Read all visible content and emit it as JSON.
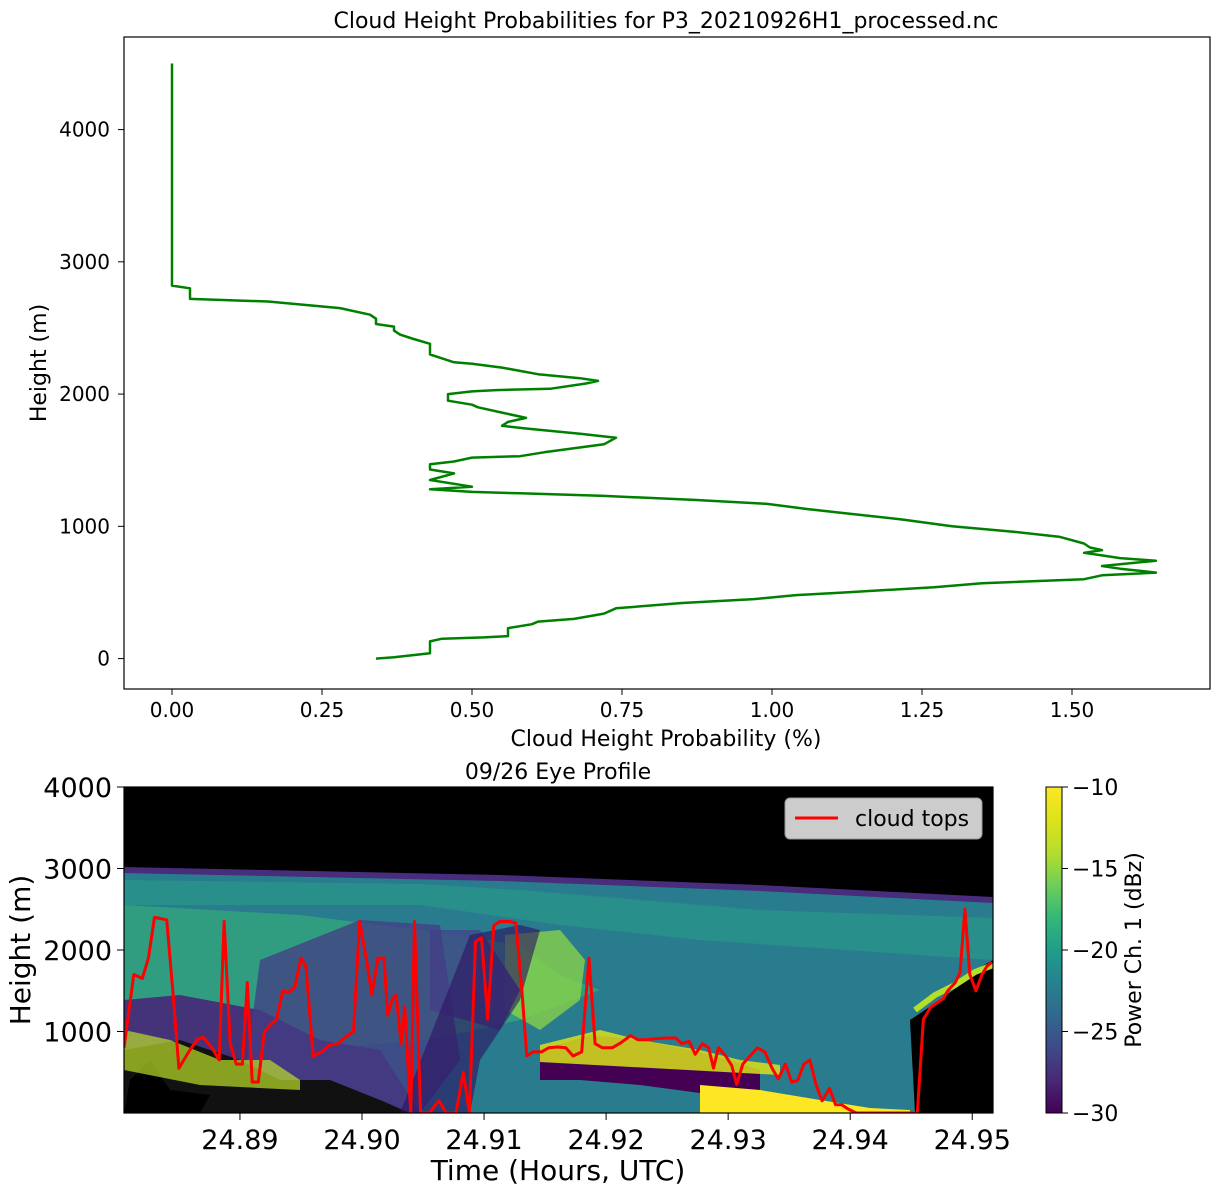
{
  "chart_data": [
    {
      "type": "line",
      "title": "Cloud Height Probabilities for P3_20210926H1_processed.nc",
      "xlabel": "Cloud Height Probability (%)",
      "ylabel": "Height (m)",
      "xlim": [
        -0.08,
        1.73
      ],
      "ylim": [
        -230,
        4700
      ],
      "xticks": [
        0.0,
        0.25,
        0.5,
        0.75,
        1.0,
        1.25,
        1.5
      ],
      "xtick_labels": [
        "0.00",
        "0.25",
        "0.50",
        "0.75",
        "1.00",
        "1.25",
        "1.50"
      ],
      "yticks": [
        0,
        1000,
        2000,
        3000,
        4000
      ],
      "ytick_labels": [
        "0",
        "1000",
        "2000",
        "3000",
        "4000"
      ],
      "grid": false,
      "line_color": "#008000",
      "series": [
        {
          "points": [
            [
              0.34,
              0
            ],
            [
              0.37,
              10
            ],
            [
              0.4,
              25
            ],
            [
              0.43,
              40
            ],
            [
              0.43,
              80
            ],
            [
              0.43,
              130
            ],
            [
              0.45,
              150
            ],
            [
              0.52,
              160
            ],
            [
              0.56,
              170
            ],
            [
              0.56,
              200
            ],
            [
              0.56,
              230
            ],
            [
              0.6,
              260
            ],
            [
              0.61,
              280
            ],
            [
              0.67,
              300
            ],
            [
              0.72,
              340
            ],
            [
              0.74,
              380
            ],
            [
              0.85,
              420
            ],
            [
              0.97,
              450
            ],
            [
              1.04,
              480
            ],
            [
              1.12,
              500
            ],
            [
              1.27,
              540
            ],
            [
              1.35,
              570
            ],
            [
              1.52,
              600
            ],
            [
              1.55,
              630
            ],
            [
              1.64,
              650
            ],
            [
              1.58,
              680
            ],
            [
              1.55,
              700
            ],
            [
              1.64,
              740
            ],
            [
              1.58,
              760
            ],
            [
              1.55,
              780
            ],
            [
              1.52,
              800
            ],
            [
              1.55,
              820
            ],
            [
              1.53,
              840
            ],
            [
              1.52,
              870
            ],
            [
              1.48,
              920
            ],
            [
              1.4,
              960
            ],
            [
              1.3,
              1000
            ],
            [
              1.22,
              1050
            ],
            [
              1.12,
              1100
            ],
            [
              1.06,
              1130
            ],
            [
              0.99,
              1170
            ],
            [
              0.87,
              1200
            ],
            [
              0.72,
              1230
            ],
            [
              0.58,
              1250
            ],
            [
              0.5,
              1260
            ],
            [
              0.43,
              1280
            ],
            [
              0.5,
              1300
            ],
            [
              0.43,
              1350
            ],
            [
              0.47,
              1400
            ],
            [
              0.43,
              1430
            ],
            [
              0.43,
              1470
            ],
            [
              0.47,
              1490
            ],
            [
              0.5,
              1520
            ],
            [
              0.58,
              1530
            ],
            [
              0.62,
              1560
            ],
            [
              0.72,
              1620
            ],
            [
              0.74,
              1670
            ],
            [
              0.68,
              1700
            ],
            [
              0.59,
              1740
            ],
            [
              0.55,
              1760
            ],
            [
              0.56,
              1790
            ],
            [
              0.59,
              1820
            ],
            [
              0.55,
              1860
            ],
            [
              0.51,
              1900
            ],
            [
              0.5,
              1920
            ],
            [
              0.46,
              1950
            ],
            [
              0.46,
              2000
            ],
            [
              0.5,
              2020
            ],
            [
              0.54,
              2030
            ],
            [
              0.63,
              2040
            ],
            [
              0.69,
              2080
            ],
            [
              0.71,
              2100
            ],
            [
              0.68,
              2120
            ],
            [
              0.61,
              2150
            ],
            [
              0.55,
              2200
            ],
            [
              0.5,
              2230
            ],
            [
              0.47,
              2240
            ],
            [
              0.43,
              2300
            ],
            [
              0.43,
              2340
            ],
            [
              0.43,
              2380
            ],
            [
              0.4,
              2420
            ],
            [
              0.38,
              2450
            ],
            [
              0.37,
              2480
            ],
            [
              0.37,
              2510
            ],
            [
              0.34,
              2530
            ],
            [
              0.34,
              2570
            ],
            [
              0.33,
              2600
            ],
            [
              0.28,
              2650
            ],
            [
              0.16,
              2700
            ],
            [
              0.03,
              2720
            ],
            [
              0.03,
              2760
            ],
            [
              0.03,
              2800
            ],
            [
              0.0,
              2820
            ],
            [
              0.0,
              2900
            ],
            [
              0.0,
              3000
            ],
            [
              0.0,
              3500
            ],
            [
              0.0,
              4000
            ],
            [
              0.0,
              4500
            ]
          ]
        }
      ]
    },
    {
      "type": "heatmap",
      "title": "09/26 Eye Profile",
      "xlabel": "Time (Hours, UTC)",
      "ylabel": "Height (m)",
      "xlim": [
        24.8805,
        24.9517
      ],
      "ylim": [
        0,
        4000
      ],
      "xticks": [
        24.89,
        24.9,
        24.91,
        24.92,
        24.93,
        24.94,
        24.95
      ],
      "xtick_labels": [
        "24.89",
        "24.90",
        "24.91",
        "24.92",
        "24.93",
        "24.94",
        "24.95"
      ],
      "yticks": [
        1000,
        2000,
        3000,
        4000
      ],
      "ytick_labels": [
        "1000",
        "2000",
        "3000",
        "4000"
      ],
      "colorbar": {
        "label": "Power Ch. 1 (dBz)",
        "min": -30,
        "max": -10,
        "ticks": [
          -30,
          -25,
          -20,
          -15,
          -10
        ],
        "tick_labels": [
          "−30",
          "−25",
          "−20",
          "−15",
          "−10"
        ],
        "colormap": "viridis"
      },
      "legend": {
        "placement": "top-right",
        "entries": [
          "cloud tops"
        ]
      },
      "line_color": "#ff0000",
      "cloud_tops": {
        "name": "cloud tops",
        "points": [
          [
            24.8805,
            800
          ],
          [
            24.8813,
            1700
          ],
          [
            24.882,
            1650
          ],
          [
            24.8825,
            1900
          ],
          [
            24.883,
            2400
          ],
          [
            24.884,
            2370
          ],
          [
            24.8845,
            1500
          ],
          [
            24.885,
            550
          ],
          [
            24.8858,
            750
          ],
          [
            24.8865,
            900
          ],
          [
            24.887,
            930
          ],
          [
            24.8877,
            800
          ],
          [
            24.8883,
            650
          ],
          [
            24.8887,
            2350
          ],
          [
            24.8892,
            850
          ],
          [
            24.8897,
            600
          ],
          [
            24.8902,
            600
          ],
          [
            24.8906,
            1600
          ],
          [
            24.891,
            380
          ],
          [
            24.8915,
            380
          ],
          [
            24.892,
            1000
          ],
          [
            24.8926,
            1100
          ],
          [
            24.893,
            1150
          ],
          [
            24.8935,
            1500
          ],
          [
            24.894,
            1480
          ],
          [
            24.8945,
            1550
          ],
          [
            24.895,
            1900
          ],
          [
            24.8954,
            1800
          ],
          [
            24.896,
            700
          ],
          [
            24.8967,
            750
          ],
          [
            24.8973,
            830
          ],
          [
            24.898,
            850
          ],
          [
            24.8988,
            950
          ],
          [
            24.8993,
            1000
          ],
          [
            24.8998,
            2350
          ],
          [
            24.9004,
            1850
          ],
          [
            24.9008,
            1450
          ],
          [
            24.9013,
            1900
          ],
          [
            24.9018,
            1900
          ],
          [
            24.9021,
            1200
          ],
          [
            24.9025,
            1400
          ],
          [
            24.9028,
            1450
          ],
          [
            24.9032,
            850
          ],
          [
            24.9035,
            1300
          ],
          [
            24.904,
            0
          ],
          [
            24.9043,
            2350
          ],
          [
            24.9048,
            0
          ],
          [
            24.9055,
            0
          ],
          [
            24.9063,
            150
          ],
          [
            24.9069,
            0
          ],
          [
            24.9077,
            0
          ],
          [
            24.9083,
            500
          ],
          [
            24.9088,
            0
          ],
          [
            24.9093,
            2100
          ],
          [
            24.9098,
            2150
          ],
          [
            24.9103,
            1150
          ],
          [
            24.9108,
            2300
          ],
          [
            24.9113,
            2350
          ],
          [
            24.9121,
            2350
          ],
          [
            24.9126,
            2330
          ],
          [
            24.9131,
            1500
          ],
          [
            24.9135,
            700
          ],
          [
            24.914,
            750
          ],
          [
            24.9147,
            750
          ],
          [
            24.9153,
            800
          ],
          [
            24.916,
            810
          ],
          [
            24.9167,
            800
          ],
          [
            24.9173,
            700
          ],
          [
            24.918,
            750
          ],
          [
            24.9186,
            1900
          ],
          [
            24.9191,
            850
          ],
          [
            24.9197,
            800
          ],
          [
            24.9205,
            800
          ],
          [
            24.9212,
            860
          ],
          [
            24.922,
            950
          ],
          [
            24.9226,
            900
          ],
          [
            24.9232,
            900
          ],
          [
            24.924,
            910
          ],
          [
            24.925,
            920
          ],
          [
            24.9257,
            920
          ],
          [
            24.9262,
            850
          ],
          [
            24.9268,
            880
          ],
          [
            24.9273,
            720
          ],
          [
            24.9279,
            850
          ],
          [
            24.9284,
            800
          ],
          [
            24.9288,
            550
          ],
          [
            24.9292,
            800
          ],
          [
            24.9298,
            700
          ],
          [
            24.9303,
            580
          ],
          [
            24.9307,
            350
          ],
          [
            24.9312,
            600
          ],
          [
            24.9318,
            700
          ],
          [
            24.9324,
            800
          ],
          [
            24.933,
            750
          ],
          [
            24.9336,
            550
          ],
          [
            24.9341,
            420
          ],
          [
            24.9347,
            600
          ],
          [
            24.9352,
            380
          ],
          [
            24.9357,
            400
          ],
          [
            24.9362,
            600
          ],
          [
            24.9367,
            650
          ],
          [
            24.9372,
            350
          ],
          [
            24.9377,
            150
          ],
          [
            24.9383,
            300
          ],
          [
            24.9388,
            100
          ],
          [
            24.9393,
            100
          ],
          [
            24.9398,
            50
          ],
          [
            24.9405,
            0
          ],
          [
            24.944,
            0
          ],
          [
            24.9455,
            0
          ],
          [
            24.946,
            1150
          ],
          [
            24.9466,
            1300
          ],
          [
            24.9471,
            1350
          ],
          [
            24.9476,
            1400
          ],
          [
            24.948,
            1500
          ],
          [
            24.9486,
            1600
          ],
          [
            24.949,
            1720
          ],
          [
            24.9494,
            2500
          ],
          [
            24.9498,
            1700
          ],
          [
            24.9503,
            1500
          ],
          [
            24.9508,
            1700
          ],
          [
            24.9512,
            1800
          ],
          [
            24.9516,
            1850
          ]
        ]
      }
    }
  ]
}
